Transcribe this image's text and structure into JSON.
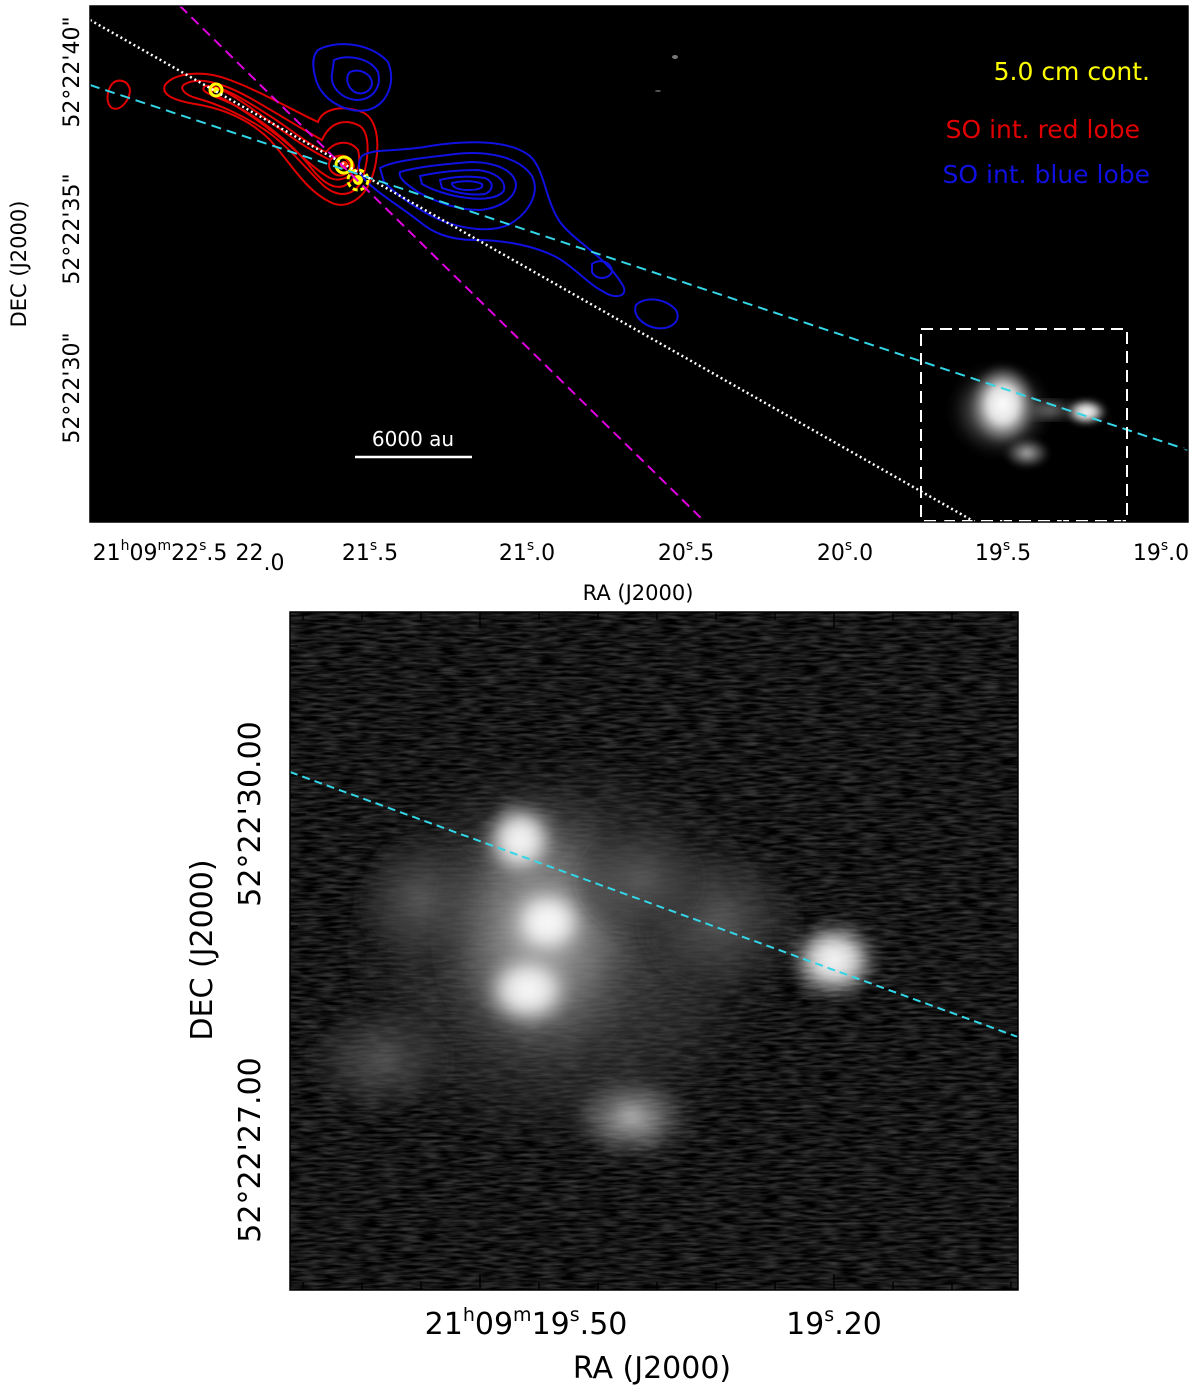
{
  "chart_data": [
    {
      "type": "image",
      "panel": "top",
      "xlabel": "RA (J2000)",
      "ylabel": "DEC (J2000)",
      "x_ticks": [
        {
          "main": "21",
          "sup1": "h",
          "mid": "09",
          "sup2": "m",
          "tail": "22",
          "sup3": "s",
          "frac": ".5",
          "ra_s": 22.5
        },
        {
          "main": "22",
          "sup": "",
          "frac": ".0",
          "ra_s": 22.0
        },
        {
          "main": "21",
          "sup": "s",
          "frac": ".5",
          "ra_s": 21.5
        },
        {
          "main": "21",
          "sup": "s",
          "frac": ".0",
          "ra_s": 21.0
        },
        {
          "main": "20",
          "sup": "s",
          "frac": ".5",
          "ra_s": 20.5
        },
        {
          "main": "20",
          "sup": "s",
          "frac": ".0",
          "ra_s": 20.0
        },
        {
          "main": "19",
          "sup": "s",
          "frac": ".5",
          "ra_s": 19.5
        },
        {
          "main": "19",
          "sup": "s",
          "frac": ".0",
          "ra_s": 19.0
        }
      ],
      "y_ticks": [
        {
          "label": "52°22'40\"",
          "dec_arcsec": 40
        },
        {
          "label": "52°22'35\"",
          "dec_arcsec": 35
        },
        {
          "label": "52°22'30\"",
          "dec_arcsec": 30
        }
      ],
      "legend": [
        {
          "label": "5.0 cm cont.",
          "color": "#ffff00"
        },
        {
          "label": "SO int. red lobe",
          "color": "#e00000"
        },
        {
          "label": "SO int. blue lobe",
          "color": "#1010e0"
        }
      ],
      "scale_bar": "6000 au",
      "line_colors": {
        "cyan": "#33d6e6",
        "magenta": "#e000e0",
        "white": "#ffffff"
      }
    },
    {
      "type": "image",
      "panel": "bottom",
      "xlabel": "RA (J2000)",
      "ylabel": "DEC (J2000)",
      "x_ticks": [
        {
          "main": "21",
          "sup1": "h",
          "mid": "09",
          "sup2": "m",
          "tail": "19",
          "sup3": "s",
          "frac": ".50",
          "ra_s": 19.5
        },
        {
          "main": "19",
          "sup": "s",
          "frac": ".20",
          "ra_s": 19.2
        }
      ],
      "y_ticks": [
        {
          "label": "52°22'30.00",
          "dec_arcsec": 30.0
        },
        {
          "label": "52°22'27.00",
          "dec_arcsec": 27.0
        }
      ],
      "line_colors": {
        "cyan": "#33d6e6"
      }
    }
  ]
}
